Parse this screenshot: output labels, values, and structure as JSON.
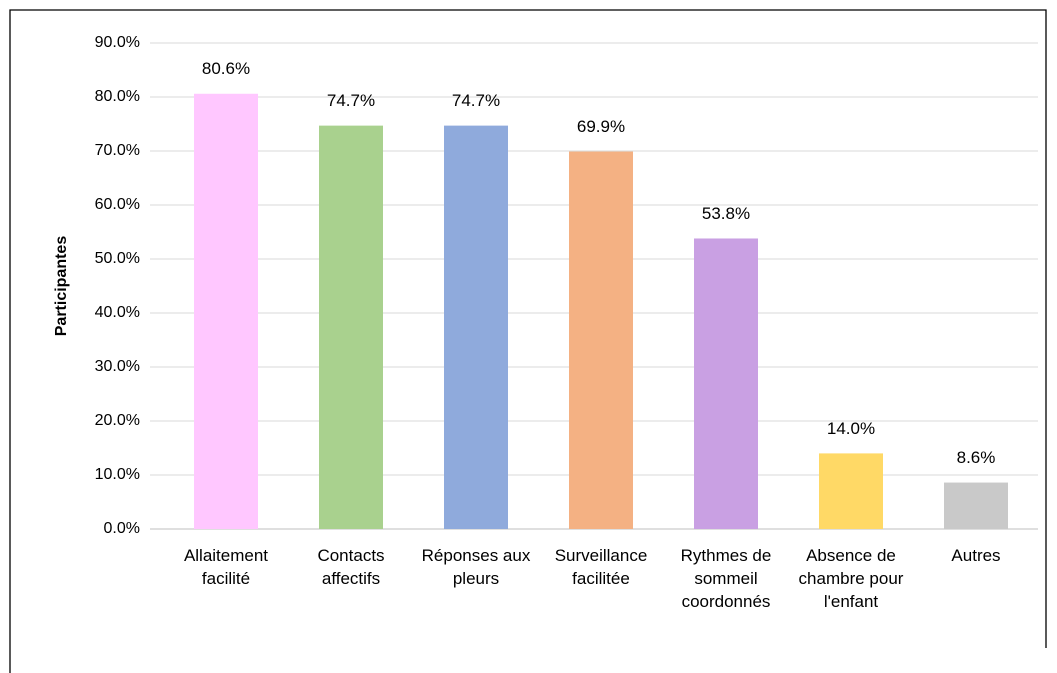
{
  "chart_data": {
    "type": "bar",
    "y_label": "Participantes",
    "categories": [
      "Allaitement facilité",
      "Contacts affectifs",
      "Réponses aux pleurs",
      "Surveillance facilitée",
      "Rythmes de sommeil coordonnés",
      "Absence de chambre pour l'enfant",
      "Autres"
    ],
    "values": [
      80.6,
      74.7,
      74.7,
      69.9,
      53.8,
      14.0,
      8.6
    ],
    "value_labels": [
      "80.6%",
      "74.7%",
      "74.7%",
      "69.9%",
      "53.8%",
      "14.0%",
      "8.6%"
    ],
    "colors": [
      "#ffc7ff",
      "#a9d18e",
      "#8faadc",
      "#f4b183",
      "#c9a0e3",
      "#ffd966",
      "#c9c9c9"
    ],
    "ylim": [
      0,
      90
    ],
    "yticks": [
      {
        "value": 0,
        "label": "0.0%"
      },
      {
        "value": 10,
        "label": "10.0%"
      },
      {
        "value": 20,
        "label": "20.0%"
      },
      {
        "value": 30,
        "label": "30.0%"
      },
      {
        "value": 40,
        "label": "40.0%"
      },
      {
        "value": 50,
        "label": "50.0%"
      },
      {
        "value": 60,
        "label": "60.0%"
      },
      {
        "value": 70,
        "label": "70.0%"
      },
      {
        "value": 80,
        "label": "80.0%"
      },
      {
        "value": 90,
        "label": "90.0%"
      }
    ],
    "grid": true
  }
}
